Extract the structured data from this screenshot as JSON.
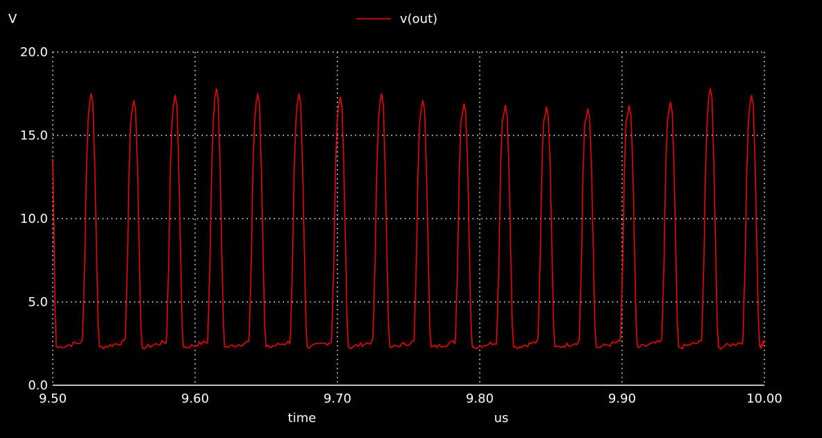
{
  "chart_data": {
    "type": "line",
    "ylabel": "V",
    "xlabel": "time",
    "xunit": "us",
    "xlim": [
      9.5,
      10.0
    ],
    "ylim": [
      0,
      20
    ],
    "x_ticks": [
      "9.50",
      "9.60",
      "9.70",
      "9.80",
      "9.90",
      "10.00"
    ],
    "y_ticks": [
      "0.0",
      "5.0",
      "10.0",
      "15.0",
      "20.0"
    ],
    "grid": true,
    "legend_position": "top-center",
    "series": [
      {
        "name": "v(out)",
        "color": "#ff0000",
        "baseline_v": 2.3,
        "pulses": [
          {
            "t": 9.5,
            "peak": 13.6
          },
          {
            "t": 9.527,
            "peak": 17.5
          },
          {
            "t": 9.557,
            "peak": 17.1
          },
          {
            "t": 9.586,
            "peak": 17.4
          },
          {
            "t": 9.615,
            "peak": 17.8
          },
          {
            "t": 9.644,
            "peak": 17.5
          },
          {
            "t": 9.673,
            "peak": 17.5
          },
          {
            "t": 9.702,
            "peak": 17.3
          },
          {
            "t": 9.731,
            "peak": 17.5
          },
          {
            "t": 9.76,
            "peak": 17.1
          },
          {
            "t": 9.789,
            "peak": 16.9
          },
          {
            "t": 9.818,
            "peak": 16.8
          },
          {
            "t": 9.847,
            "peak": 16.7
          },
          {
            "t": 9.876,
            "peak": 16.6
          },
          {
            "t": 9.905,
            "peak": 16.8
          },
          {
            "t": 9.934,
            "peak": 17.0
          },
          {
            "t": 9.962,
            "peak": 17.8
          },
          {
            "t": 9.991,
            "peak": 17.4
          }
        ]
      }
    ]
  }
}
